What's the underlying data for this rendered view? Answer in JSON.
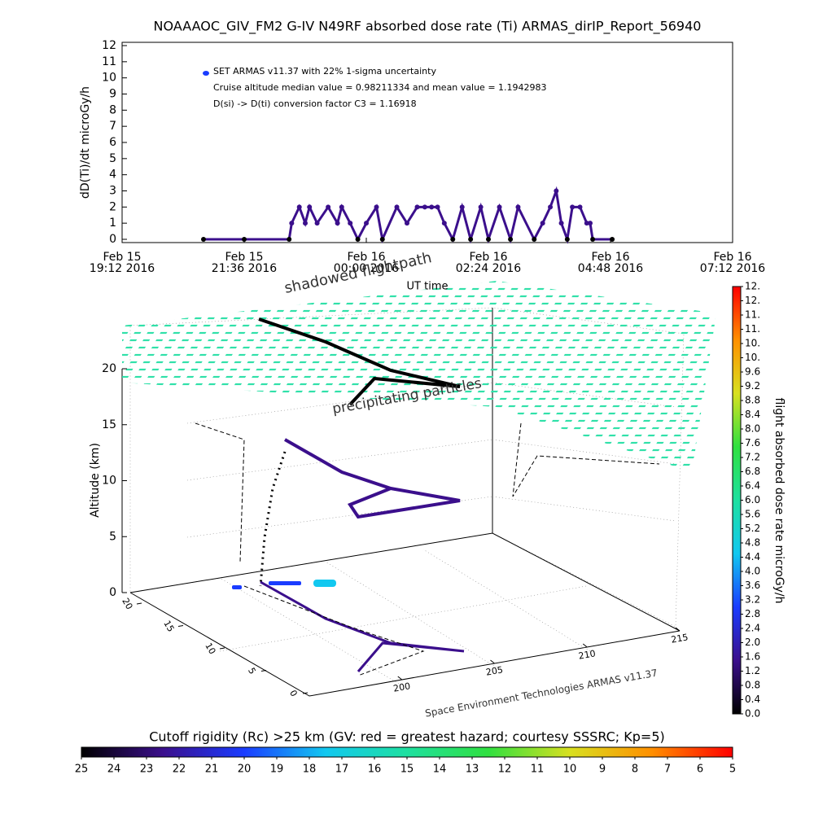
{
  "chart_data": [
    {
      "type": "line",
      "title": "NOAAAOC_GIV_FM2 G-IV   N49RF  absorbed dose rate (Ti) ARMAS_dirIP_Report_56940",
      "ylabel": "dD(Ti)/dt microGy/h",
      "xlabel": "UT time",
      "annotations": [
        "Cruise altitude median value = 0.98211334 and mean value = 1.1942983",
        "D(si) -> D(ti) conversion factor C3 = 1.16918"
      ],
      "xlim": [
        "2016-02-15T19:12",
        "2016-02-16T07:12"
      ],
      "xticks": [
        {
          "value": "2016-02-15T19:12",
          "label": [
            "Feb 15",
            "19:12 2016"
          ]
        },
        {
          "value": "2016-02-15T21:36",
          "label": [
            "Feb 15",
            "21:36 2016"
          ]
        },
        {
          "value": "2016-02-16T00:00",
          "label": [
            "Feb 16",
            "00:00 2016"
          ]
        },
        {
          "value": "2016-02-16T02:24",
          "label": [
            "Feb 16",
            "02:24 2016"
          ]
        },
        {
          "value": "2016-02-16T04:48",
          "label": [
            "Feb 16",
            "04:48 2016"
          ]
        },
        {
          "value": "2016-02-16T07:12",
          "label": [
            "Feb 16",
            "07:12 2016"
          ]
        }
      ],
      "ylim": [
        0,
        12
      ],
      "yticks": [
        0,
        1,
        2,
        3,
        4,
        5,
        6,
        7,
        8,
        9,
        10,
        11,
        12
      ],
      "x": [
        "2016-02-15T20:48",
        "2016-02-15T21:36",
        "2016-02-15T22:29",
        "2016-02-15T22:32",
        "2016-02-15T22:41",
        "2016-02-15T22:48",
        "2016-02-15T22:53",
        "2016-02-15T23:02",
        "2016-02-15T23:15",
        "2016-02-15T23:26",
        "2016-02-15T23:31",
        "2016-02-15T23:41",
        "2016-02-15T23:50",
        "2016-02-16T00:00",
        "2016-02-16T00:12",
        "2016-02-16T00:19",
        "2016-02-16T00:36",
        "2016-02-16T00:48",
        "2016-02-16T01:00",
        "2016-02-16T01:09",
        "2016-02-16T01:17",
        "2016-02-16T01:24",
        "2016-02-16T01:32",
        "2016-02-16T01:42",
        "2016-02-16T01:53",
        "2016-02-16T02:03",
        "2016-02-16T02:15",
        "2016-02-16T02:24",
        "2016-02-16T02:37",
        "2016-02-16T02:50",
        "2016-02-16T02:59",
        "2016-02-16T03:18",
        "2016-02-16T03:28",
        "2016-02-16T03:37",
        "2016-02-16T03:44",
        "2016-02-16T03:50",
        "2016-02-16T03:57",
        "2016-02-16T04:03",
        "2016-02-16T04:12",
        "2016-02-16T04:20",
        "2016-02-16T04:24",
        "2016-02-16T04:27",
        "2016-02-16T04:50"
      ],
      "series": [
        {
          "name": "SET ARMAS v11.37 with 22% 1-sigma uncertainty",
          "color": "#3b0f8c",
          "values": [
            0,
            0,
            0,
            1,
            2,
            1,
            2,
            1,
            2,
            1,
            2,
            1,
            0,
            1,
            2,
            0,
            2,
            1,
            2,
            2,
            2,
            2,
            1,
            0,
            2,
            0,
            2,
            0,
            2,
            0,
            2,
            0,
            1,
            2,
            3,
            1,
            0,
            2,
            2,
            1,
            1,
            0,
            0
          ]
        }
      ]
    },
    {
      "type": "surface3d",
      "zlabel": "Altitude (km)",
      "annotations": [
        "shadowed flightpath",
        "precipitating particles",
        "Space Environment Technologies ARMAS v11.37"
      ],
      "xlim": [
        195,
        215
      ],
      "xticks": [
        200,
        205,
        210,
        215
      ],
      "ylim": [
        0,
        20
      ],
      "yticks": [
        0,
        5,
        10,
        15,
        20
      ],
      "zlim": [
        0,
        20
      ],
      "zticks": [
        0,
        5,
        10,
        15,
        20
      ]
    },
    {
      "type": "colorbar",
      "orientation": "vertical",
      "label": "flight absorbed dose rate microGy/h",
      "colors": [
        "#000000",
        "#3b0f8c",
        "#1a3cff",
        "#12c8f0",
        "#1ee0a0",
        "#30e040",
        "#d8e020",
        "#ff9000",
        "#ff0000"
      ],
      "lim": [
        0,
        12
      ],
      "ticks": [
        {
          "value": 0,
          "label": "0.0"
        },
        0.4,
        0.8,
        1.2,
        1.6,
        {
          "value": 2,
          "label": "2.0"
        },
        2.4,
        2.8,
        3.2,
        3.6,
        {
          "value": 4,
          "label": "4.0"
        },
        4.4,
        4.8,
        5.2,
        5.6,
        {
          "value": 6,
          "label": "6.0"
        },
        6.4,
        6.8,
        7.2,
        7.6,
        {
          "value": 8,
          "label": "8.0"
        },
        8.4,
        8.8,
        9.2,
        9.6,
        {
          "value": 10,
          "label": "10."
        },
        {
          "value": 10.4,
          "label": "10."
        },
        {
          "value": 10.8,
          "label": "11."
        },
        {
          "value": 11.2,
          "label": "11."
        },
        {
          "value": 11.6,
          "label": "12."
        },
        {
          "value": 12,
          "label": "12."
        }
      ]
    },
    {
      "type": "colorbar",
      "orientation": "horizontal",
      "label": "Cutoff rigidity (Rc) >25 km (GV: red = greatest hazard; courtesy SSSRC; Kp=5)",
      "colors": [
        "#000000",
        "#3b0f8c",
        "#1a3cff",
        "#12c8f0",
        "#1ee0a0",
        "#30e040",
        "#d8e020",
        "#ff9000",
        "#ff0000"
      ],
      "lim": [
        25,
        5
      ],
      "ticks": [
        25,
        24,
        23,
        22,
        21,
        20,
        19,
        18,
        17,
        16,
        15,
        14,
        13,
        12,
        11,
        10,
        9,
        8,
        7,
        6,
        5
      ]
    }
  ]
}
